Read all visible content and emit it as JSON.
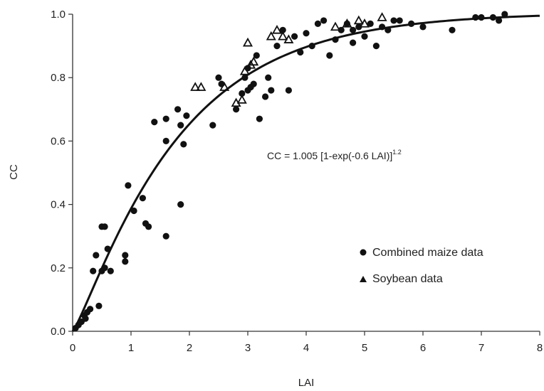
{
  "chart_data": {
    "type": "scatter",
    "title": "",
    "xlabel": "LAI",
    "ylabel": "CC",
    "xlim": [
      0,
      8
    ],
    "ylim": [
      0,
      1.0
    ],
    "x_ticks": [
      "0",
      "1",
      "2",
      "3",
      "4",
      "5",
      "6",
      "7",
      "8"
    ],
    "y_ticks": [
      "0.0",
      "0.2",
      "0.4",
      "0.6",
      "0.8",
      "1.0"
    ],
    "grid": false,
    "legend_position": "right-middle",
    "annotation": "CC = 1.005 [1-exp(-0.6 LAI)]^1.2",
    "equation_main": "CC = 1.005 [1-exp(-0.6 LAI)]",
    "equation_exponent": "1.2",
    "fit": {
      "a": 1.005,
      "k": 0.6,
      "p": 1.2
    },
    "series": [
      {
        "name": "Combined maize data",
        "marker": "circle",
        "points": [
          [
            0.05,
            0.01
          ],
          [
            0.1,
            0.02
          ],
          [
            0.15,
            0.03
          ],
          [
            0.2,
            0.05
          ],
          [
            0.22,
            0.04
          ],
          [
            0.3,
            0.07
          ],
          [
            0.25,
            0.06
          ],
          [
            0.35,
            0.19
          ],
          [
            0.4,
            0.24
          ],
          [
            0.45,
            0.08
          ],
          [
            0.5,
            0.19
          ],
          [
            0.5,
            0.33
          ],
          [
            0.55,
            0.33
          ],
          [
            0.6,
            0.26
          ],
          [
            0.55,
            0.2
          ],
          [
            0.65,
            0.19
          ],
          [
            0.9,
            0.24
          ],
          [
            0.9,
            0.22
          ],
          [
            0.95,
            0.46
          ],
          [
            1.05,
            0.38
          ],
          [
            1.2,
            0.42
          ],
          [
            1.25,
            0.34
          ],
          [
            1.3,
            0.33
          ],
          [
            1.4,
            0.66
          ],
          [
            1.6,
            0.67
          ],
          [
            1.6,
            0.6
          ],
          [
            1.6,
            0.3
          ],
          [
            1.8,
            0.7
          ],
          [
            1.85,
            0.65
          ],
          [
            1.85,
            0.4
          ],
          [
            1.9,
            0.59
          ],
          [
            1.95,
            0.68
          ],
          [
            2.4,
            0.65
          ],
          [
            2.5,
            0.8
          ],
          [
            2.55,
            0.78
          ],
          [
            2.8,
            0.7
          ],
          [
            2.9,
            0.75
          ],
          [
            2.95,
            0.8
          ],
          [
            3.0,
            0.83
          ],
          [
            3.0,
            0.76
          ],
          [
            3.05,
            0.77
          ],
          [
            3.1,
            0.78
          ],
          [
            3.15,
            0.87
          ],
          [
            3.2,
            0.67
          ],
          [
            3.3,
            0.74
          ],
          [
            3.35,
            0.8
          ],
          [
            3.4,
            0.76
          ],
          [
            3.5,
            0.9
          ],
          [
            3.6,
            0.95
          ],
          [
            3.7,
            0.76
          ],
          [
            3.8,
            0.93
          ],
          [
            3.9,
            0.88
          ],
          [
            4.0,
            0.94
          ],
          [
            4.1,
            0.9
          ],
          [
            4.2,
            0.97
          ],
          [
            4.3,
            0.98
          ],
          [
            4.4,
            0.87
          ],
          [
            4.5,
            0.92
          ],
          [
            4.6,
            0.95
          ],
          [
            4.7,
            0.97
          ],
          [
            4.8,
            0.91
          ],
          [
            4.8,
            0.95
          ],
          [
            4.9,
            0.96
          ],
          [
            5.0,
            0.93
          ],
          [
            5.1,
            0.97
          ],
          [
            5.2,
            0.9
          ],
          [
            5.3,
            0.96
          ],
          [
            5.4,
            0.95
          ],
          [
            5.5,
            0.98
          ],
          [
            5.6,
            0.98
          ],
          [
            5.8,
            0.97
          ],
          [
            6.0,
            0.96
          ],
          [
            6.5,
            0.95
          ],
          [
            6.9,
            0.99
          ],
          [
            7.0,
            0.99
          ],
          [
            7.2,
            0.99
          ],
          [
            7.3,
            0.98
          ],
          [
            7.4,
            1.0
          ]
        ]
      },
      {
        "name": "Soybean data",
        "marker": "triangle",
        "points": [
          [
            2.1,
            0.77
          ],
          [
            2.2,
            0.77
          ],
          [
            2.6,
            0.77
          ],
          [
            2.8,
            0.72
          ],
          [
            2.9,
            0.73
          ],
          [
            2.95,
            0.82
          ],
          [
            3.0,
            0.91
          ],
          [
            3.05,
            0.84
          ],
          [
            3.1,
            0.85
          ],
          [
            3.4,
            0.93
          ],
          [
            3.5,
            0.95
          ],
          [
            3.6,
            0.93
          ],
          [
            3.7,
            0.92
          ],
          [
            4.5,
            0.96
          ],
          [
            4.7,
            0.97
          ],
          [
            4.9,
            0.98
          ],
          [
            5.0,
            0.97
          ],
          [
            5.3,
            0.99
          ]
        ]
      }
    ]
  }
}
